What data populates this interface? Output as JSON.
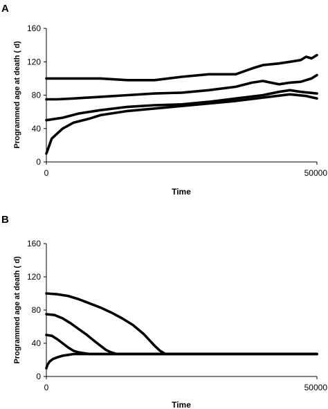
{
  "chart_data": [
    {
      "panel": "A",
      "type": "line",
      "xlabel": "Time",
      "ylabel": "Programmed age at death ( d)",
      "xlim": [
        0,
        50000
      ],
      "ylim": [
        0,
        160
      ],
      "xticks": [
        "0",
        "50000"
      ],
      "yticks": [
        "0",
        "40",
        "80",
        "120",
        "160"
      ],
      "grid": false,
      "series": [
        {
          "x": [
            0,
            2000,
            5000,
            10000,
            15000,
            20000,
            25000,
            30000,
            35000,
            38000,
            40000,
            43000,
            45000,
            47000,
            48000,
            49000,
            50000
          ],
          "values": [
            100,
            100,
            100,
            100,
            98,
            98,
            102,
            105,
            105,
            112,
            116,
            118,
            120,
            122,
            126,
            124,
            128
          ]
        },
        {
          "x": [
            0,
            2000,
            5000,
            10000,
            15000,
            20000,
            25000,
            30000,
            35000,
            38000,
            40000,
            43000,
            45000,
            47000,
            49000,
            50000
          ],
          "values": [
            75,
            75,
            76,
            78,
            80,
            82,
            83,
            86,
            90,
            95,
            97,
            93,
            95,
            96,
            100,
            104
          ]
        },
        {
          "x": [
            0,
            3000,
            6000,
            10000,
            15000,
            20000,
            25000,
            30000,
            35000,
            40000,
            43000,
            45000,
            47000,
            50000
          ],
          "values": [
            50,
            53,
            58,
            62,
            66,
            68,
            69,
            72,
            76,
            80,
            84,
            86,
            84,
            82
          ]
        },
        {
          "x": [
            0,
            1000,
            3000,
            5000,
            8000,
            10000,
            15000,
            20000,
            25000,
            30000,
            35000,
            40000,
            45000,
            48000,
            50000
          ],
          "values": [
            10,
            28,
            40,
            47,
            52,
            56,
            61,
            64,
            67,
            70,
            73,
            77,
            81,
            79,
            76
          ]
        }
      ]
    },
    {
      "panel": "B",
      "type": "line",
      "xlabel": "Time",
      "ylabel": "Programmed age at death ( d)",
      "xlim": [
        0,
        50000
      ],
      "ylim": [
        0,
        160
      ],
      "xticks": [
        "0",
        "50000"
      ],
      "yticks": [
        "0",
        "40",
        "80",
        "120",
        "160"
      ],
      "grid": false,
      "series": [
        {
          "x": [
            0,
            2000,
            4000,
            6000,
            8000,
            10000,
            12000,
            14000,
            16000,
            18000,
            19000,
            20000,
            21000,
            22000,
            25000,
            30000,
            40000,
            50000
          ],
          "values": [
            100,
            99,
            97,
            93,
            88,
            83,
            77,
            70,
            62,
            51,
            44,
            37,
            31,
            27,
            27,
            27,
            27,
            27
          ]
        },
        {
          "x": [
            0,
            1500,
            3000,
            4500,
            6000,
            7500,
            9000,
            10000,
            11000,
            12000,
            13000,
            15000,
            20000,
            30000,
            50000
          ],
          "values": [
            75,
            74,
            70,
            64,
            57,
            50,
            42,
            37,
            32,
            29,
            27,
            27,
            27,
            27,
            27
          ]
        },
        {
          "x": [
            0,
            1000,
            2000,
            3000,
            4000,
            5000,
            6000,
            7000,
            8000,
            10000,
            20000,
            50000
          ],
          "values": [
            50,
            49,
            45,
            40,
            35,
            31,
            29,
            28,
            27,
            27,
            27,
            27
          ]
        },
        {
          "x": [
            0,
            200,
            600,
            1200,
            2000,
            3000,
            4000,
            5000,
            6000,
            8000,
            10000,
            20000,
            50000
          ],
          "values": [
            10,
            14,
            18,
            21,
            23,
            25,
            26,
            27,
            27,
            27,
            27,
            27,
            27
          ]
        }
      ]
    }
  ]
}
